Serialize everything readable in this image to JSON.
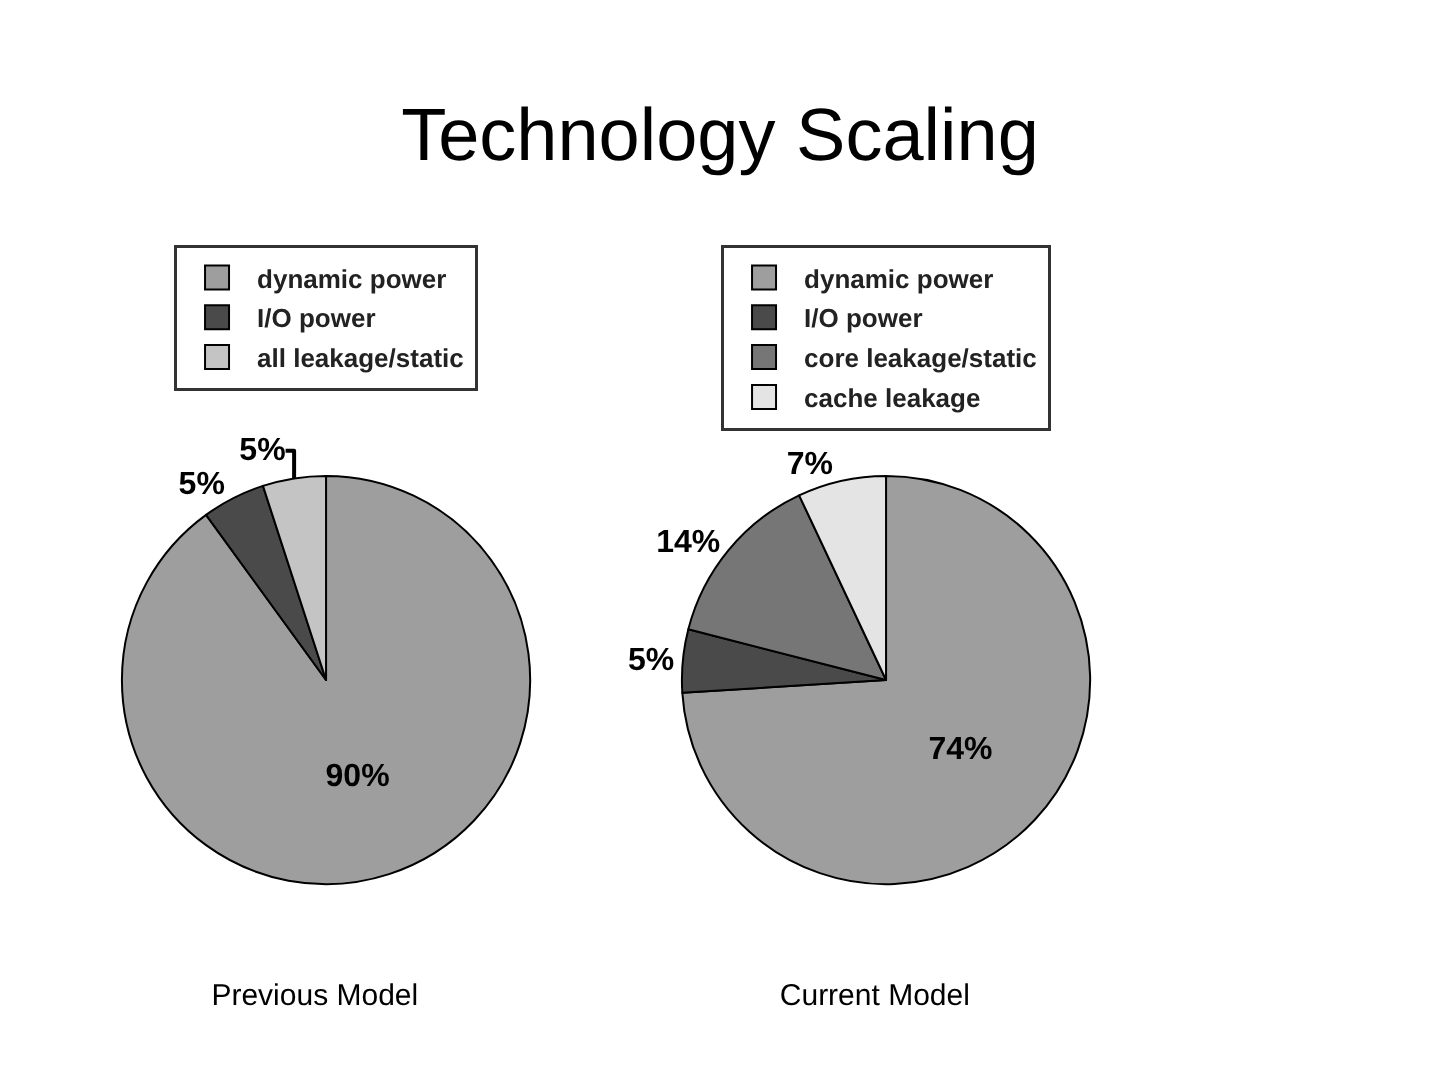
{
  "chart_data": [
    {
      "type": "pie",
      "title": "Previous Model",
      "annotations": [
        "Technology Scaling"
      ],
      "categories": [
        "dynamic power",
        "I/O power",
        "all leakage/static"
      ],
      "values": [
        90,
        5,
        5
      ],
      "value_labels": [
        "90%",
        "5%",
        "5%"
      ],
      "colors": [
        "#9e9e9e",
        "#4a4a4a",
        "#c4c4c4"
      ],
      "legend": "top"
    },
    {
      "type": "pie",
      "title": "Current Model",
      "categories": [
        "dynamic power",
        "I/O power",
        "core leakage/static",
        "cache leakage"
      ],
      "values": [
        74,
        5,
        14,
        7
      ],
      "value_labels": [
        "74%",
        "5%",
        "14%",
        "7%"
      ],
      "colors": [
        "#9e9e9e",
        "#4a4a4a",
        "#767676",
        "#e4e4e4"
      ],
      "legend": "top"
    }
  ]
}
